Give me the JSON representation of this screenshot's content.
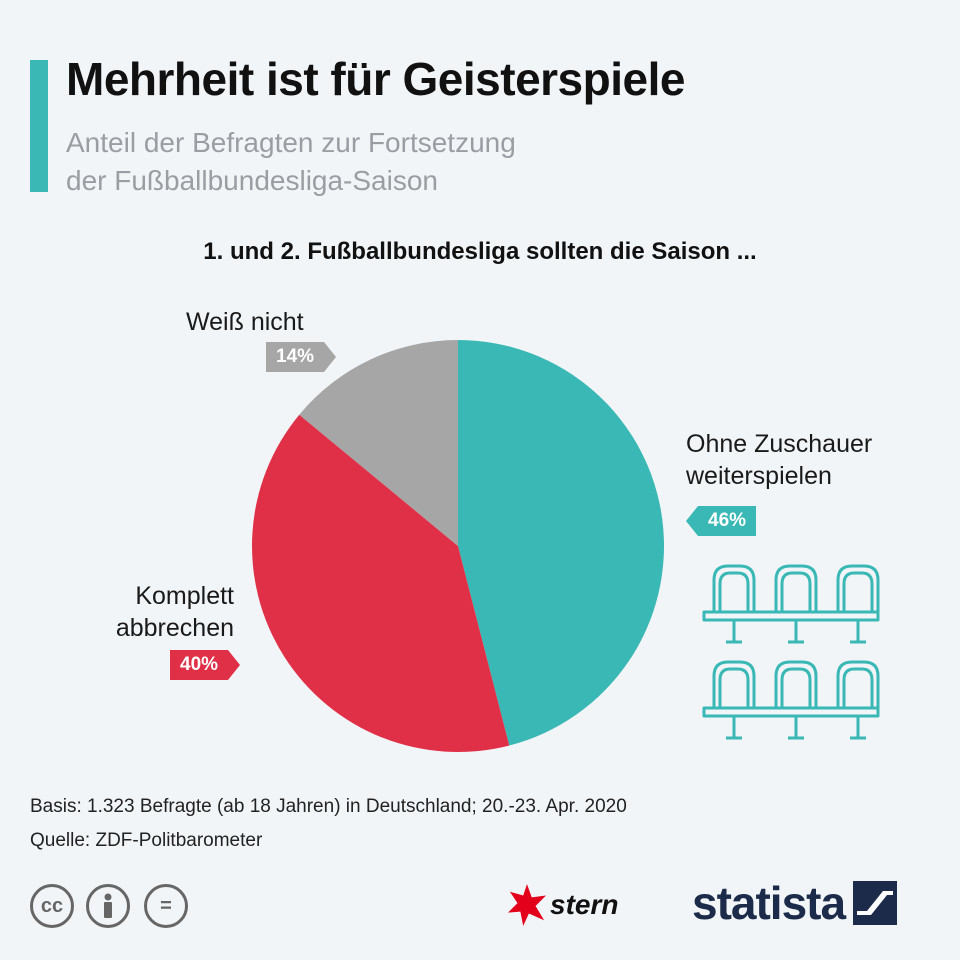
{
  "header": {
    "title": "Mehrheit ist für Geisterspiele",
    "subtitle_line1": "Anteil der Befragten zur Fortsetzung",
    "subtitle_line2": "der Fußballbundesliga-Saison"
  },
  "chart_heading": "1. und 2. Fußballbundesliga sollten die Saison ...",
  "chart_data": {
    "type": "pie",
    "slices": [
      {
        "label_line1": "Ohne Zuschauer",
        "label_line2": "weiterspielen",
        "value": 46,
        "display": "46%",
        "color": "#3ab8b5"
      },
      {
        "label_line1": "Komplett",
        "label_line2": "abbrechen",
        "value": 40,
        "display": "40%",
        "color": "#e03047"
      },
      {
        "label_line1": "Weiß nicht",
        "label_line2": "",
        "value": 14,
        "display": "14%",
        "color": "#a6a6a6"
      }
    ]
  },
  "footer": {
    "basis": "Basis: 1.323 Befragte (ab 18 Jahren) in Deutschland; 20.-23. Apr. 2020",
    "source": "Quelle: ZDF-Politbarometer"
  },
  "license_icons": [
    {
      "name": "cc-icon",
      "glyph": "cc"
    },
    {
      "name": "attribution-icon",
      "glyph": ""
    },
    {
      "name": "no-derivatives-icon",
      "glyph": "="
    }
  ],
  "logos": {
    "stern": "stern",
    "statista": "statista"
  },
  "colors": {
    "accent": "#3ab8b5",
    "red": "#e03047",
    "gray": "#a6a6a6",
    "statista_navy": "#1c2b49"
  }
}
